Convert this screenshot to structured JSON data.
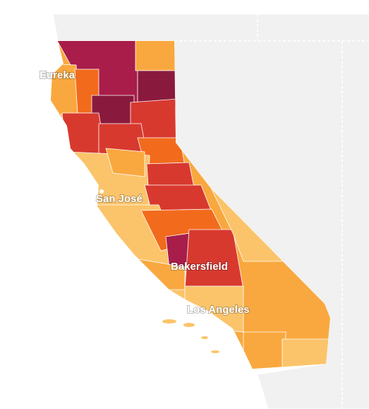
{
  "map": {
    "labels": [
      "Eureka",
      "San José",
      "Bakersfield",
      "Los Angeles"
    ]
  }
}
